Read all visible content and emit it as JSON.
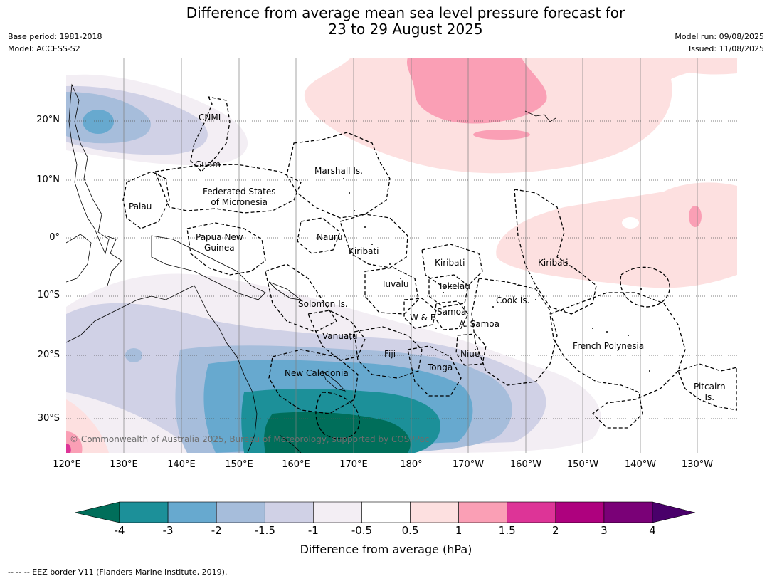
{
  "title": {
    "line1": "Difference from average mean sea level pressure forecast for",
    "line2": "23 to 29 August 2025"
  },
  "meta": {
    "base_period": "Base period: 1981-2018",
    "model": "Model: ACCESS-S2",
    "model_run": "Model run: 09/08/2025",
    "issued": "Issued: 11/08/2025"
  },
  "axes": {
    "lat_labels": [
      "20°N",
      "10°N",
      "0°",
      "10°S",
      "20°S",
      "30°S"
    ],
    "lon_labels": [
      "120°E",
      "130°E",
      "140°E",
      "150°E",
      "160°E",
      "170°E",
      "180°",
      "170°W",
      "160°W",
      "150°W",
      "140°W",
      "130°W"
    ],
    "grid": true
  },
  "regions": {
    "cnmi": "CNMI",
    "guam": "Guam",
    "palau": "Palau",
    "fsm_line1": "Federated States",
    "fsm_line2": "of Micronesia",
    "marshall": "Marshall Is.",
    "nauru": "Nauru",
    "png_line1": "Papua New",
    "png_line2": "Guinea",
    "kiribati_west": "Kiribati",
    "kiribati_central": "Kiribati",
    "kiribati_east": "Kiribati",
    "tuvalu": "Tuvalu",
    "tokelau": "Tokelau",
    "solomon": "Solomon Is.",
    "wf": "W & F",
    "samoa": "Samoa",
    "asamoa": "A. Samoa",
    "cook": "Cook Is.",
    "vanuatu": "Vanuatu",
    "fiji": "Fiji",
    "niue": "Niue",
    "tonga": "Tonga",
    "french_polynesia": "French Polynesia",
    "new_caledonia": "New Caledonia",
    "pitcairn_line1": "Pitcairn",
    "pitcairn_line2": "Is."
  },
  "copyright": "© Commonwealth of Australia 2025, Bureau of Meteorology, supported by COSPPac",
  "colorbar": {
    "ticks": [
      "-4",
      "-3",
      "-2",
      "-1.5",
      "-1",
      "-0.5",
      "0.5",
      "1",
      "1.5",
      "2",
      "3",
      "4"
    ],
    "colors": [
      "#006e5a",
      "#1c9099",
      "#67a9cf",
      "#a6bddb",
      "#d0d1e6",
      "#f3eef4",
      "#ffffff",
      "#fde0e0",
      "#fa9fb5",
      "#dd3497",
      "#ae017e",
      "#7a0177",
      "#49006a"
    ],
    "label": "Difference from average (hPa)"
  },
  "footnote": "--  --  -- EEZ border V11 (Flanders Marine Institute, 2019)."
}
